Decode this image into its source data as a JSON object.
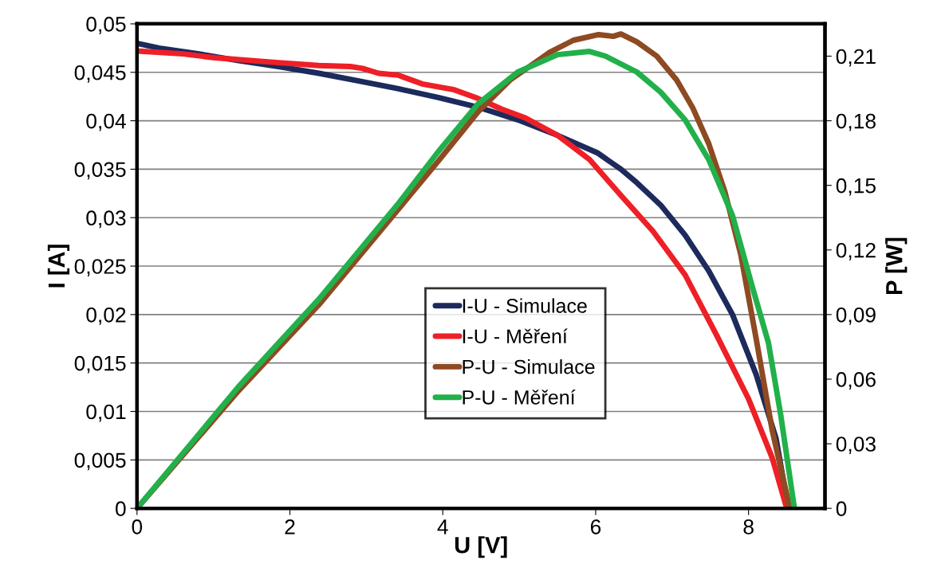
{
  "chart_data": {
    "type": "line",
    "xlabel": "U [V]",
    "ylabel": "I [A]",
    "y2label": "P [W]",
    "xlim": [
      0,
      9
    ],
    "xticks": [
      0,
      2,
      4,
      6,
      8
    ],
    "ylim": [
      0,
      0.05
    ],
    "yticks": [
      {
        "value": 0,
        "label": "0"
      },
      {
        "value": 0.005,
        "label": "0,005"
      },
      {
        "value": 0.01,
        "label": "0,01"
      },
      {
        "value": 0.015,
        "label": "0,015"
      },
      {
        "value": 0.02,
        "label": "0,02"
      },
      {
        "value": 0.025,
        "label": "0,025"
      },
      {
        "value": 0.03,
        "label": "0,03"
      },
      {
        "value": 0.035,
        "label": "0,035"
      },
      {
        "value": 0.04,
        "label": "0,04"
      },
      {
        "value": 0.045,
        "label": "0,045"
      },
      {
        "value": 0.05,
        "label": "0,05"
      }
    ],
    "y2lim": [
      0,
      0.225
    ],
    "y2ticks": [
      {
        "value": 0,
        "label": "0"
      },
      {
        "value": 0.03,
        "label": "0,03"
      },
      {
        "value": 0.06,
        "label": "0,06"
      },
      {
        "value": 0.09,
        "label": "0,09"
      },
      {
        "value": 0.12,
        "label": "0,12"
      },
      {
        "value": 0.15,
        "label": "0,15"
      },
      {
        "value": 0.18,
        "label": "0,18"
      },
      {
        "value": 0.21,
        "label": "0,21"
      }
    ],
    "grid": "y",
    "legend": "center",
    "marker": "none",
    "line_style": "solid",
    "series": [
      {
        "name": "I-U - Simulace",
        "color": "#1c2a5c",
        "x": [
          0,
          0.29,
          0.81,
          1.33,
          1.85,
          2.38,
          2.9,
          3.42,
          3.94,
          4.46,
          4.98,
          5.5,
          6.02,
          6.33,
          6.54,
          6.85,
          7.17,
          7.48,
          7.79,
          8.1,
          8.36,
          8.52
        ],
        "values": [
          0.048,
          0.0475,
          0.0469,
          0.0462,
          0.0456,
          0.0449,
          0.0441,
          0.0433,
          0.0424,
          0.0414,
          0.0401,
          0.0385,
          0.0367,
          0.035,
          0.0336,
          0.0313,
          0.0282,
          0.0245,
          0.02,
          0.0138,
          0.0072,
          0
        ]
      },
      {
        "name": "I-U - Měření",
        "color": "#ee2027",
        "x": [
          0,
          0.6,
          1.02,
          1.85,
          2.38,
          2.79,
          2.95,
          3.16,
          3.42,
          3.73,
          4.15,
          4.46,
          4.77,
          5.08,
          5.5,
          5.92,
          6.33,
          6.75,
          7.17,
          7.58,
          8.0,
          8.31,
          8.5
        ],
        "values": [
          0.0472,
          0.0469,
          0.0465,
          0.046,
          0.0457,
          0.0456,
          0.0454,
          0.0449,
          0.0447,
          0.0438,
          0.0432,
          0.0423,
          0.0412,
          0.0403,
          0.0385,
          0.036,
          0.0323,
          0.0286,
          0.0241,
          0.0179,
          0.0113,
          0.0052,
          0
        ]
      },
      {
        "name": "P-U - Simulace",
        "color": "#8e4a22",
        "axis": "y2",
        "x": [
          0,
          1.33,
          2.38,
          2.9,
          3.42,
          3.94,
          4.46,
          4.88,
          5.4,
          5.71,
          6.04,
          6.23,
          6.33,
          6.54,
          6.8,
          7.06,
          7.27,
          7.48,
          7.69,
          7.9,
          8.1,
          8.31,
          8.54
        ],
        "values": [
          0,
          0.0547,
          0.0946,
          0.1168,
          0.139,
          0.1612,
          0.1841,
          0.1989,
          0.2118,
          0.2174,
          0.22,
          0.2192,
          0.2203,
          0.2166,
          0.21,
          0.1989,
          0.186,
          0.1693,
          0.1471,
          0.1176,
          0.0787,
          0.0362,
          0
        ]
      },
      {
        "name": "P-U - Měření",
        "color": "#22b04b",
        "axis": "y2",
        "x": [
          0,
          1.33,
          2.38,
          2.9,
          3.42,
          3.94,
          4.46,
          4.98,
          5.5,
          5.92,
          6.13,
          6.54,
          6.85,
          7.17,
          7.48,
          7.79,
          8.05,
          8.26,
          8.42,
          8.6
        ],
        "values": [
          0,
          0.0566,
          0.0972,
          0.1194,
          0.1416,
          0.1656,
          0.1878,
          0.2026,
          0.2107,
          0.2122,
          0.21,
          0.2026,
          0.1933,
          0.1804,
          0.1619,
          0.136,
          0.1028,
          0.0769,
          0.0436,
          0
        ]
      }
    ]
  }
}
